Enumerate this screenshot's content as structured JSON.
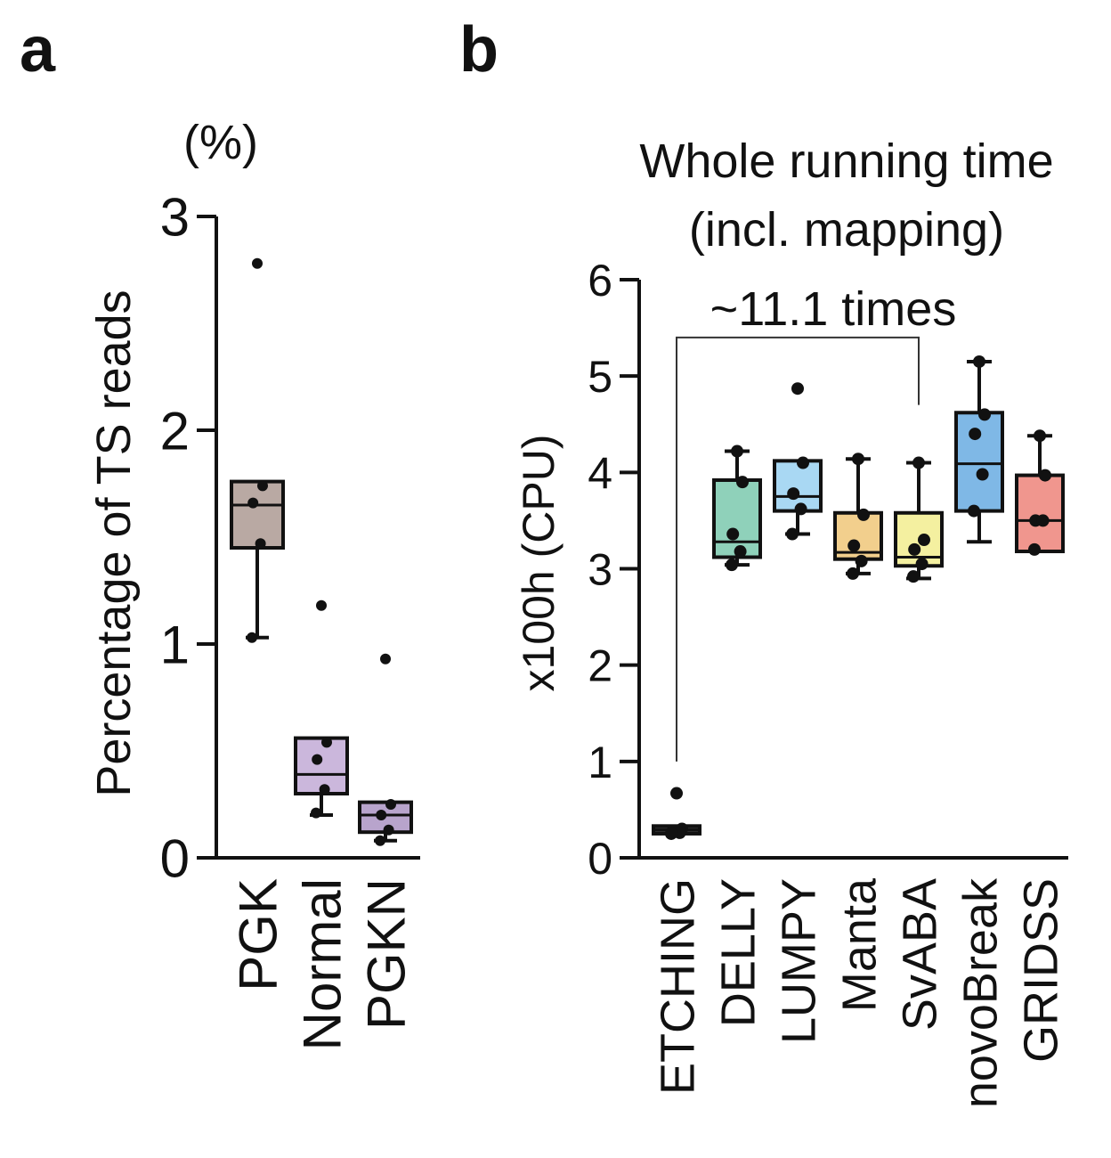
{
  "panels": {
    "a": {
      "label": "a"
    },
    "b": {
      "label": "b"
    }
  },
  "chart_data": [
    {
      "type": "box",
      "panel": "a",
      "title": "",
      "unit_label": "(%)",
      "ylabel": "Percentage of TS reads",
      "ylim": [
        0,
        3
      ],
      "yticks": [
        0,
        1,
        2,
        3
      ],
      "categories": [
        "PGK",
        "Normal",
        "PGKN"
      ],
      "colors": [
        "#b9a9a3",
        "#cbb7dc",
        "#b8a4cc"
      ],
      "boxes": [
        {
          "name": "PGK",
          "min": 1.03,
          "q1": 1.45,
          "median": 1.65,
          "q3": 1.76,
          "max": 1.76,
          "points": [
            2.78,
            1.74,
            1.66,
            1.47,
            1.03
          ]
        },
        {
          "name": "Normal",
          "min": 0.2,
          "q1": 0.3,
          "median": 0.39,
          "q3": 0.56,
          "max": 0.56,
          "points": [
            1.18,
            0.54,
            0.46,
            0.32,
            0.21
          ]
        },
        {
          "name": "PGKN",
          "min": 0.08,
          "q1": 0.12,
          "median": 0.2,
          "q3": 0.26,
          "max": 0.26,
          "points": [
            0.93,
            0.25,
            0.2,
            0.13,
            0.08
          ]
        }
      ]
    },
    {
      "type": "box",
      "panel": "b",
      "title": "Whole running time (incl. mapping)",
      "title_lines": [
        "Whole running time",
        "(incl. mapping)"
      ],
      "ylabel": "x100h (CPU)",
      "ylim": [
        0,
        6
      ],
      "yticks": [
        0,
        1,
        2,
        3,
        4,
        5,
        6
      ],
      "categories": [
        "ETCHING",
        "DELLY",
        "LUMPY",
        "Manta",
        "SvABA",
        "novoBreak",
        "GRIDSS"
      ],
      "colors": [
        "#333333",
        "#8fd1ba",
        "#a9d8f3",
        "#f2cf8d",
        "#f4f0a0",
        "#7fb8e6",
        "#f0968e"
      ],
      "boxes": [
        {
          "name": "ETCHING",
          "min": 0.25,
          "q1": 0.25,
          "median": 0.29,
          "q3": 0.33,
          "max": 0.33,
          "points": [
            0.67,
            0.3,
            0.27,
            0.26,
            0.25
          ]
        },
        {
          "name": "DELLY",
          "min": 3.04,
          "q1": 3.12,
          "median": 3.28,
          "q3": 3.92,
          "max": 4.22,
          "points": [
            4.22,
            3.9,
            3.36,
            3.18,
            3.04
          ]
        },
        {
          "name": "LUMPY",
          "min": 3.36,
          "q1": 3.6,
          "median": 3.75,
          "q3": 4.12,
          "max": 4.12,
          "points": [
            4.87,
            4.1,
            3.78,
            3.62,
            3.36
          ]
        },
        {
          "name": "Manta",
          "min": 2.95,
          "q1": 3.1,
          "median": 3.17,
          "q3": 3.58,
          "max": 4.14,
          "points": [
            4.14,
            3.56,
            3.24,
            3.08,
            2.95
          ]
        },
        {
          "name": "SvABA",
          "min": 2.9,
          "q1": 3.03,
          "median": 3.12,
          "q3": 3.58,
          "max": 4.1,
          "points": [
            4.1,
            3.3,
            3.2,
            3.05,
            2.92
          ]
        },
        {
          "name": "novoBreak",
          "min": 3.28,
          "q1": 3.6,
          "median": 4.09,
          "q3": 4.62,
          "max": 5.15,
          "points": [
            5.15,
            4.6,
            4.4,
            3.98,
            3.6
          ]
        },
        {
          "name": "GRIDSS",
          "min": 3.18,
          "q1": 3.18,
          "median": 3.5,
          "q3": 3.97,
          "max": 4.38,
          "points": [
            4.38,
            3.97,
            3.5,
            3.5,
            3.2
          ]
        }
      ],
      "annotations": [
        {
          "text": "~11.1 times",
          "from": "ETCHING",
          "to": "SvABA"
        }
      ]
    }
  ]
}
